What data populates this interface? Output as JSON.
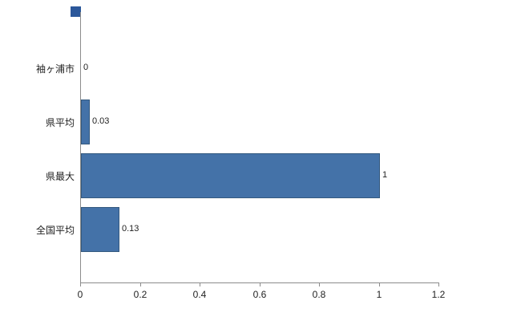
{
  "chart_data": {
    "type": "bar",
    "orientation": "horizontal",
    "title": "",
    "xlabel": "",
    "ylabel": "",
    "categories": [
      "袖ヶ浦市",
      "県平均",
      "県最大",
      "全国平均"
    ],
    "values": [
      0,
      0.03,
      1,
      0.13
    ],
    "value_labels": [
      "0",
      "0.03",
      "1",
      "0.13"
    ],
    "xlim": [
      0,
      1.2
    ],
    "x_ticks": [
      0,
      0.2,
      0.4,
      0.6,
      0.8,
      1,
      1.2
    ],
    "x_tick_labels": [
      "0",
      "0.2",
      "0.4",
      "0.6",
      "0.8",
      "1",
      "1.2"
    ],
    "grid": false,
    "legend": "none",
    "colors": {
      "bar_fill": "#4472a8",
      "bar_border": "#34597f",
      "axis": "#8c8c8c",
      "text": "#222222",
      "corner_marker": "#2b579a"
    }
  }
}
